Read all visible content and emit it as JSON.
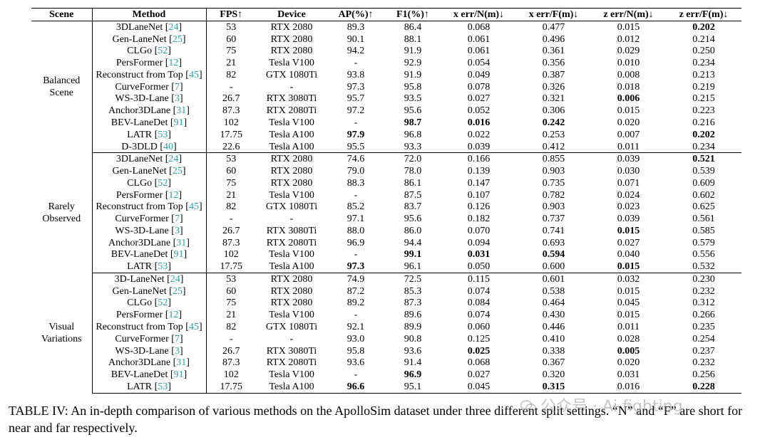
{
  "table": {
    "headers": [
      "Scene",
      "Method",
      "FPS↑",
      "Device",
      "AP(%)↑",
      "F1(%)↑",
      "x err/N(m)↓",
      "x err/F(m)↓",
      "z err/N(m)↓",
      "z err/F(m)↓"
    ],
    "groups": [
      {
        "scene_lines": [
          "Balanced",
          "Scene"
        ],
        "rows": [
          {
            "method": "3DLaneNet",
            "ref": "24",
            "cells": [
              "53",
              "RTX 2080",
              "89.3",
              "86.4",
              "0.068",
              "0.477",
              "0.015",
              "0.202"
            ],
            "bold": [
              7
            ]
          },
          {
            "method": "Gen-LaneNet",
            "ref": "25",
            "cells": [
              "60",
              "RTX 2080",
              "90.1",
              "88.1",
              "0.061",
              "0.496",
              "0.012",
              "0.214"
            ],
            "bold": []
          },
          {
            "method": "CLGo",
            "ref": "52",
            "cells": [
              "75",
              "RTX 2080",
              "94.2",
              "91.9",
              "0.061",
              "0.361",
              "0.029",
              "0.250"
            ],
            "bold": []
          },
          {
            "method": "PersFormer",
            "ref": "12",
            "cells": [
              "21",
              "Tesla V100",
              "-",
              "92.9",
              "0.054",
              "0.356",
              "0.010",
              "0.234"
            ],
            "bold": []
          },
          {
            "method": "Reconstruct from Top",
            "ref": "45",
            "cells": [
              "82",
              "GTX 1080Ti",
              "93.8",
              "91.9",
              "0.049",
              "0.387",
              "0.008",
              "0.213"
            ],
            "bold": []
          },
          {
            "method": "CurveFormer",
            "ref": "7",
            "cells": [
              "-",
              "-",
              "97.3",
              "95.8",
              "0.078",
              "0.326",
              "0.018",
              "0.219"
            ],
            "bold": []
          },
          {
            "method": "WS-3D-Lane",
            "ref": "3",
            "cells": [
              "26.7",
              "RTX 3080Ti",
              "95.7",
              "93.5",
              "0.027",
              "0.321",
              "0.006",
              "0.215"
            ],
            "bold": [
              6
            ]
          },
          {
            "method": "Anchor3DLane",
            "ref": "31",
            "cells": [
              "87.3",
              "RTX 2080Ti",
              "97.2",
              "95.6",
              "0.052",
              "0.306",
              "0.015",
              "0.223"
            ],
            "bold": []
          },
          {
            "method": "BEV-LaneDet",
            "ref": "91",
            "cells": [
              "102",
              "Tesla V100",
              "-",
              "98.7",
              "0.016",
              "0.242",
              "0.020",
              "0.216"
            ],
            "bold": [
              3,
              4,
              5
            ]
          },
          {
            "method": "LATR",
            "ref": "53",
            "cells": [
              "17.75",
              "Tesla A100",
              "97.9",
              "96.8",
              "0.022",
              "0.253",
              "0.007",
              "0.202"
            ],
            "bold": [
              2,
              7
            ]
          },
          {
            "method": "D-3DLD",
            "ref": "40",
            "cells": [
              "22.6",
              "Tesla A100",
              "95.5",
              "93.3",
              "0.039",
              "0.412",
              "0.011",
              "0.234"
            ],
            "bold": []
          }
        ]
      },
      {
        "scene_lines": [
          "Rarely",
          "Observed"
        ],
        "rows": [
          {
            "method": "3DLaneNet",
            "ref": "24",
            "cells": [
              "53",
              "RTX 2080",
              "74.6",
              "72.0",
              "0.166",
              "0.855",
              "0.039",
              "0.521"
            ],
            "bold": [
              7
            ]
          },
          {
            "method": "Gen-LaneNet",
            "ref": "25",
            "cells": [
              "60",
              "RTX 2080",
              "79.0",
              "78.0",
              "0.139",
              "0.903",
              "0.030",
              "0.539"
            ],
            "bold": []
          },
          {
            "method": "CLGo",
            "ref": "52",
            "cells": [
              "75",
              "RTX 2080",
              "88.3",
              "86.1",
              "0.147",
              "0.735",
              "0.071",
              "0.609"
            ],
            "bold": []
          },
          {
            "method": "PersFormer",
            "ref": "12",
            "cells": [
              "21",
              "Tesla V100",
              "-",
              "87.5",
              "0.107",
              "0.782",
              "0.024",
              "0.602"
            ],
            "bold": []
          },
          {
            "method": "Reconstruct from Top",
            "ref": "45",
            "cells": [
              "82",
              "GTX 1080Ti",
              "85.2",
              "83.7",
              "0.126",
              "0.903",
              "0.023",
              "0.625"
            ],
            "bold": []
          },
          {
            "method": "CurveFormer",
            "ref": "7",
            "cells": [
              "-",
              "-",
              "97.1",
              "95.6",
              "0.182",
              "0.737",
              "0.039",
              "0.561"
            ],
            "bold": []
          },
          {
            "method": "WS-3D-Lane",
            "ref": "3",
            "cells": [
              "26.7",
              "RTX 3080Ti",
              "88.0",
              "86.0",
              "0.070",
              "0.741",
              "0.015",
              "0.585"
            ],
            "bold": [
              6
            ]
          },
          {
            "method": "Anchor3DLane",
            "ref": "31",
            "cells": [
              "87.3",
              "RTX 2080Ti",
              "96.9",
              "94.4",
              "0.094",
              "0.693",
              "0.027",
              "0.579"
            ],
            "bold": []
          },
          {
            "method": "BEV-LaneDet",
            "ref": "91",
            "cells": [
              "102",
              "Tesla V100",
              "-",
              "99.1",
              "0.031",
              "0.594",
              "0.040",
              "0.556"
            ],
            "bold": [
              3,
              4,
              5
            ]
          },
          {
            "method": "LATR",
            "ref": "53",
            "cells": [
              "17.75",
              "Tesla A100",
              "97.3",
              "96.1",
              "0.050",
              "0.600",
              "0.015",
              "0.532"
            ],
            "bold": [
              2,
              6
            ]
          }
        ]
      },
      {
        "scene_lines": [
          "Visual",
          "Variations"
        ],
        "rows": [
          {
            "method": "3D-LaneNet",
            "ref": "24",
            "cells": [
              "53",
              "RTX 2080",
              "74.9",
              "72.5",
              "0.115",
              "0.601",
              "0.032",
              "0.230"
            ],
            "bold": []
          },
          {
            "method": "Gen-LaneNet",
            "ref": "25",
            "cells": [
              "60",
              "RTX 2080",
              "87.2",
              "85.3",
              "0.074",
              "0.538",
              "0.015",
              "0.232"
            ],
            "bold": []
          },
          {
            "method": "CLGo",
            "ref": "52",
            "cells": [
              "75",
              "RTX 2080",
              "89.2",
              "87.3",
              "0.084",
              "0.464",
              "0.045",
              "0.312"
            ],
            "bold": []
          },
          {
            "method": "PersFormer",
            "ref": "12",
            "cells": [
              "21",
              "Tesla V100",
              "-",
              "89.6",
              "0.074",
              "0.430",
              "0.015",
              "0.266"
            ],
            "bold": []
          },
          {
            "method": "Reconstruct from Top",
            "ref": "45",
            "cells": [
              "82",
              "GTX 1080Ti",
              "92.1",
              "89.9",
              "0.060",
              "0.446",
              "0.011",
              "0.235"
            ],
            "bold": []
          },
          {
            "method": "CurveFormer",
            "ref": "7",
            "cells": [
              "-",
              "-",
              "93.0",
              "90.8",
              "0.125",
              "0.410",
              "0.028",
              "0.254"
            ],
            "bold": []
          },
          {
            "method": "WS-3D-Lane",
            "ref": "3",
            "cells": [
              "26.7",
              "RTX 3080Ti",
              "95.8",
              "93.6",
              "0.025",
              "0.338",
              "0.005",
              "0.237"
            ],
            "bold": [
              4,
              6
            ]
          },
          {
            "method": "Anchor3DLane",
            "ref": "31",
            "cells": [
              "87.3",
              "RTX 2080Ti",
              "93.6",
              "91.4",
              "0.068",
              "0.367",
              "0.020",
              "0.232"
            ],
            "bold": []
          },
          {
            "method": "BEV-LaneDet",
            "ref": "91",
            "cells": [
              "102",
              "Tesla V100",
              "-",
              "96.9",
              "0.027",
              "0.320",
              "0.031",
              "0.256"
            ],
            "bold": [
              3
            ]
          },
          {
            "method": "LATR",
            "ref": "53",
            "cells": [
              "17.75",
              "Tesla A100",
              "96.6",
              "95.1",
              "0.045",
              "0.315",
              "0.016",
              "0.228"
            ],
            "bold": [
              2,
              5,
              7
            ]
          }
        ]
      }
    ]
  },
  "caption": "TABLE IV: An in-depth comparison of various methods on the ApolloSim dataset under three different split settings. “N” and “F” are short for near and far respectively.",
  "watermark": "公众号 · Ai fighting",
  "colors": {
    "ref_link": "#2aa3a3",
    "watermark": "#969696"
  }
}
